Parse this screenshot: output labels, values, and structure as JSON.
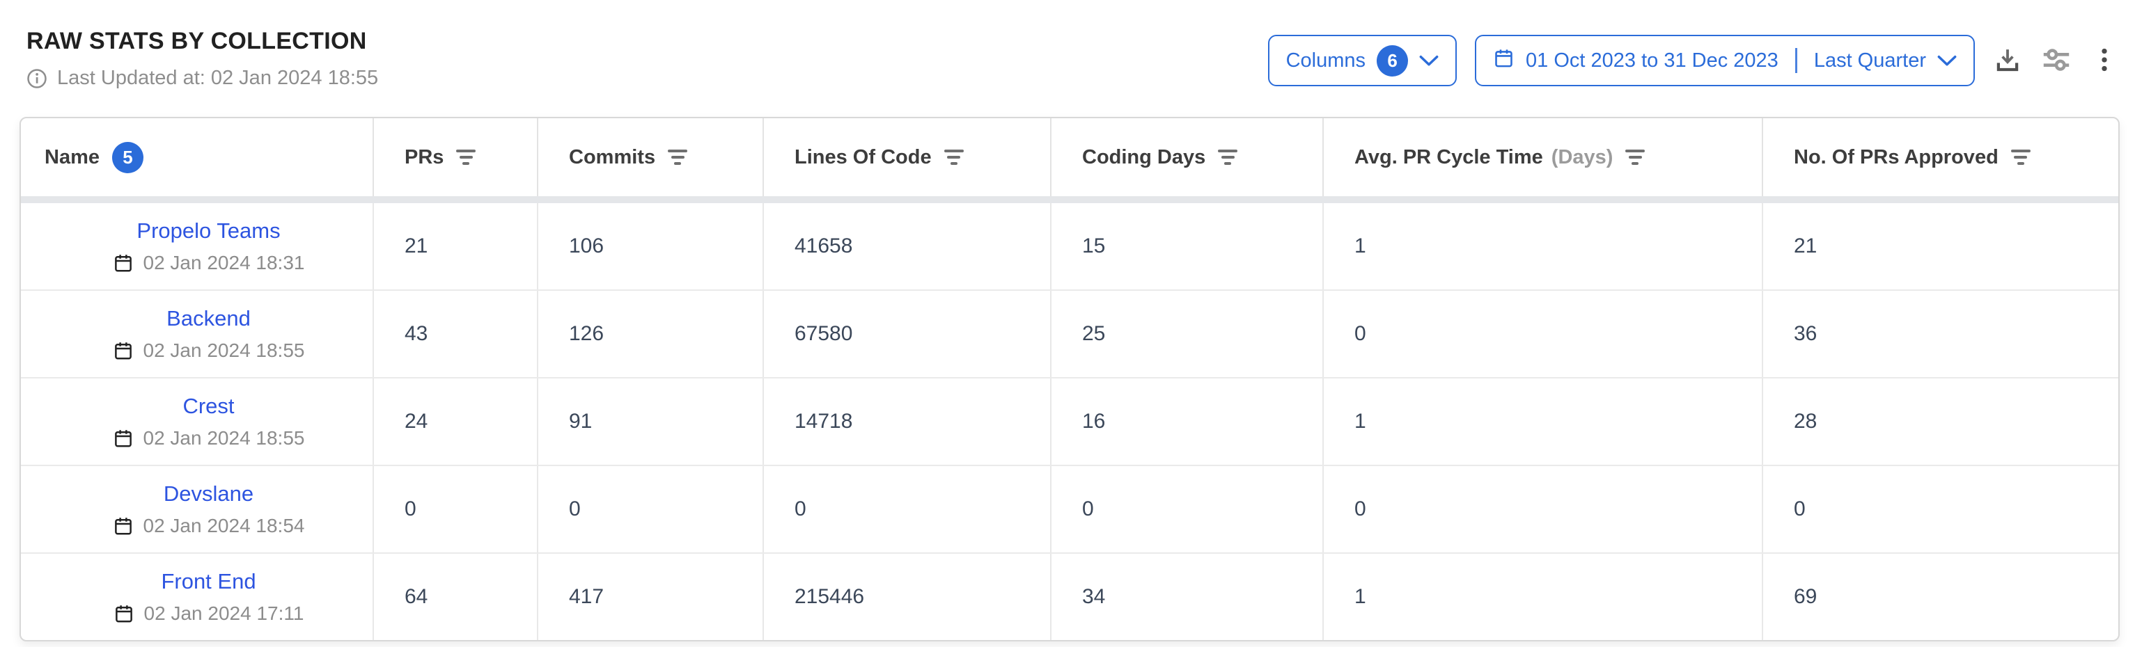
{
  "header": {
    "title": "RAW STATS BY COLLECTION",
    "last_updated": "Last Updated at: 02 Jan 2024 18:55"
  },
  "toolbar": {
    "columns_button": {
      "label": "Columns",
      "badge": "6"
    },
    "date_range_button": {
      "range": "01 Oct 2023 to 31 Dec 2023",
      "preset": "Last Quarter"
    },
    "icons": [
      "download-icon",
      "sliders-icon",
      "kebab-menu-icon"
    ]
  },
  "table": {
    "name_badge": "5",
    "columns": [
      {
        "label": "Name"
      },
      {
        "label": "PRs"
      },
      {
        "label": "Commits"
      },
      {
        "label": "Lines Of Code"
      },
      {
        "label": "Coding Days"
      },
      {
        "label": "Avg. PR Cycle Time",
        "suffix": "(Days)"
      },
      {
        "label": "No. Of PRs Approved"
      }
    ],
    "rows": [
      {
        "name": "Propelo Teams",
        "updated": "02 Jan 2024 18:31",
        "prs": "21",
        "commits": "106",
        "lines_of_code": "41658",
        "coding_days": "15",
        "avg_pr_cycle_time": "1",
        "prs_approved": "21"
      },
      {
        "name": "Backend",
        "updated": "02 Jan 2024 18:55",
        "prs": "43",
        "commits": "126",
        "lines_of_code": "67580",
        "coding_days": "25",
        "avg_pr_cycle_time": "0",
        "prs_approved": "36"
      },
      {
        "name": "Crest",
        "updated": "02 Jan 2024 18:55",
        "prs": "24",
        "commits": "91",
        "lines_of_code": "14718",
        "coding_days": "16",
        "avg_pr_cycle_time": "1",
        "prs_approved": "28"
      },
      {
        "name": "Devslane",
        "updated": "02 Jan 2024 18:54",
        "prs": "0",
        "commits": "0",
        "lines_of_code": "0",
        "coding_days": "0",
        "avg_pr_cycle_time": "0",
        "prs_approved": "0"
      },
      {
        "name": "Front End",
        "updated": "02 Jan 2024 17:11",
        "prs": "64",
        "commits": "417",
        "lines_of_code": "215446",
        "coding_days": "34",
        "avg_pr_cycle_time": "1",
        "prs_approved": "69"
      }
    ]
  },
  "colors": {
    "accent_blue": "#2b6cd9",
    "link_blue": "#2d54e0",
    "value_text": "#3b4759",
    "header_text": "#3d3d3d",
    "muted_gray": "#8e8e8e"
  }
}
